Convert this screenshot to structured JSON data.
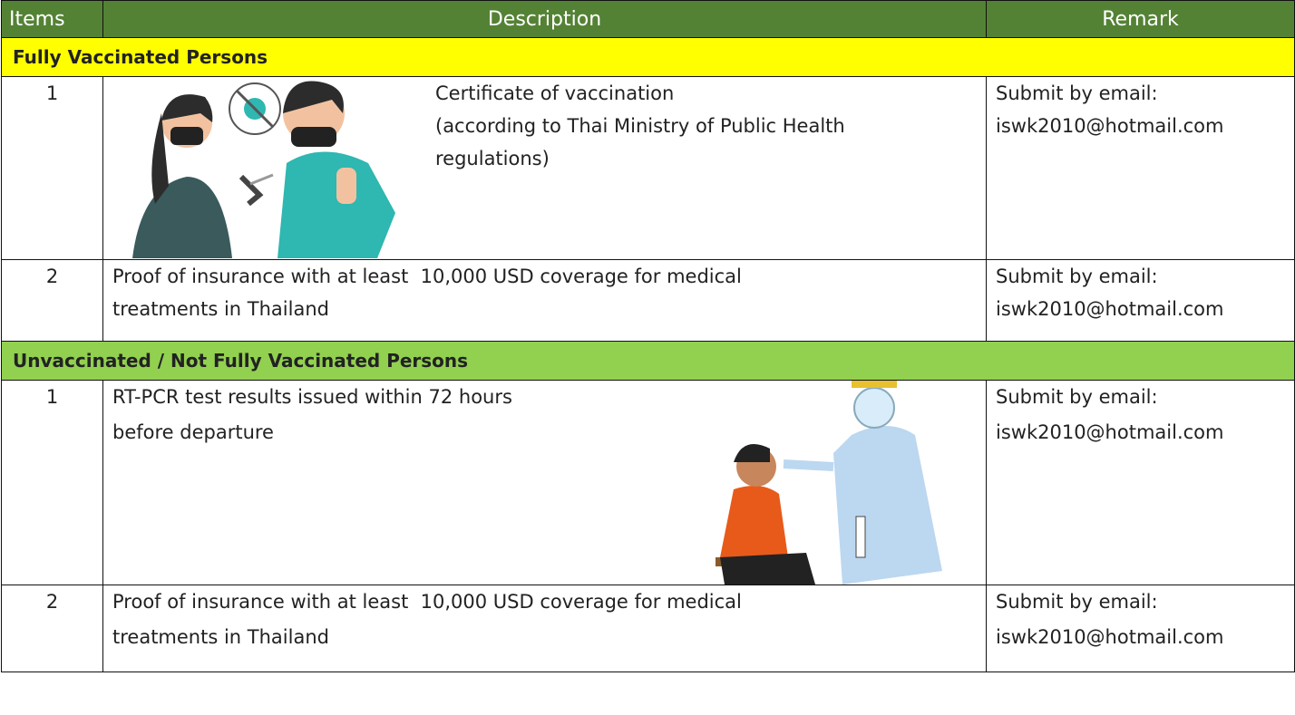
{
  "table": {
    "header": [
      "Items",
      "Description",
      "Remark"
    ],
    "sections": [
      {
        "title": "Fully Vaccinated Persons",
        "rows": [
          {
            "item": "1",
            "description": [
              "Certificate of vaccination",
              "(according to Thai Ministry of Public Health",
              "regulations)"
            ],
            "remark": [
              "Submit by email:",
              "iswk2010@hotmail.com"
            ]
          },
          {
            "item": "2",
            "description": [
              "Proof of insurance with at least  10,000 USD coverage for medical",
              "treatments in Thailand"
            ],
            "remark": [
              "Submit by email:",
              "iswk2010@hotmail.com"
            ]
          }
        ]
      },
      {
        "title": "Unvaccinated / Not Fully Vaccinated Persons",
        "rows": [
          {
            "item": "1",
            "description": [
              "RT-PCR test results issued within 72 hours",
              "before departure"
            ],
            "remark": [
              "Submit by email:",
              "iswk2010@hotmail.com"
            ]
          },
          {
            "item": "2",
            "description": [
              "Proof of insurance with at least  10,000 USD coverage for medical",
              "treatments in Thailand"
            ],
            "remark": [
              "Submit by email:",
              "iswk2010@hotmail.com"
            ]
          }
        ]
      }
    ]
  }
}
